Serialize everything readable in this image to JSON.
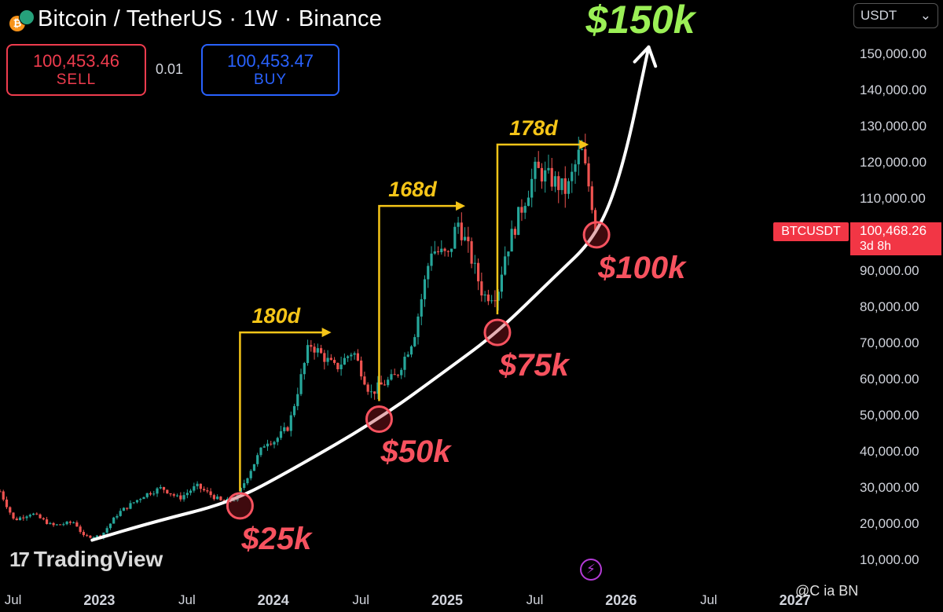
{
  "header": {
    "title": "Bitcoin / TetherUS · 1W · Binance",
    "coin_icon": "btc-usdt-pair-icon",
    "sell_price": "100,453.46",
    "sell_label": "SELL",
    "spread": "0.01",
    "buy_price": "100,453.47",
    "buy_label": "BUY",
    "currency_selector": "USDT"
  },
  "price_tag": {
    "symbol": "BTCUSDT",
    "price": "100,468.26",
    "countdown": "3d 8h"
  },
  "branding": {
    "logo_mark": "17",
    "logo_text": "TradingView",
    "watermark": "@C  ia BN"
  },
  "colors": {
    "up": "#26a69a",
    "down": "#ef5350",
    "curve": "#ffffff",
    "range_arrow": "#f5c518",
    "support_circle": "#f7525f",
    "target_label": "#9bf056",
    "price_tag": "#f23645"
  },
  "chart_data": {
    "type": "candlestick",
    "title": "Bitcoin / TetherUS · 1W · Binance",
    "y_axis": {
      "ticks": [
        10000,
        20000,
        30000,
        40000,
        50000,
        60000,
        70000,
        80000,
        90000,
        110000,
        120000,
        130000,
        140000,
        150000
      ],
      "tick_labels": [
        "10,000.00",
        "20,000.00",
        "30,000.00",
        "40,000.00",
        "50,000.00",
        "60,000.00",
        "70,000.00",
        "80,000.00",
        "90,000.00",
        "110,000.00",
        "120,000.00",
        "130,000.00",
        "140,000.00",
        "150,000.00"
      ],
      "range": [
        3000,
        165000
      ]
    },
    "x_axis": {
      "range": [
        2022.42,
        2027.3
      ],
      "ticks": [
        {
          "label": "Jul",
          "t": 2022.5,
          "bold": false
        },
        {
          "label": "2023",
          "t": 2023.0,
          "bold": true
        },
        {
          "label": "Jul",
          "t": 2023.5,
          "bold": false
        },
        {
          "label": "2024",
          "t": 2024.0,
          "bold": true
        },
        {
          "label": "Jul",
          "t": 2024.5,
          "bold": false
        },
        {
          "label": "2025",
          "t": 2025.0,
          "bold": true
        },
        {
          "label": "Jul",
          "t": 2025.5,
          "bold": false
        },
        {
          "label": "2026",
          "t": 2026.0,
          "bold": true
        },
        {
          "label": "Jul",
          "t": 2026.5,
          "bold": false
        },
        {
          "label": "2027",
          "t": 2027.0,
          "bold": true
        }
      ]
    },
    "price_anchors": [
      [
        2022.42,
        29000
      ],
      [
        2022.5,
        21000
      ],
      [
        2022.6,
        23000
      ],
      [
        2022.72,
        19500
      ],
      [
        2022.85,
        20500
      ],
      [
        2022.9,
        16500
      ],
      [
        2023.0,
        16600
      ],
      [
        2023.1,
        23000
      ],
      [
        2023.25,
        28000
      ],
      [
        2023.35,
        30000
      ],
      [
        2023.45,
        27000
      ],
      [
        2023.55,
        30500
      ],
      [
        2023.7,
        26000
      ],
      [
        2023.78,
        27000
      ],
      [
        2023.85,
        34000
      ],
      [
        2023.95,
        43000
      ],
      [
        2024.0,
        43000
      ],
      [
        2024.08,
        47000
      ],
      [
        2024.2,
        70000
      ],
      [
        2024.35,
        63000
      ],
      [
        2024.45,
        68000
      ],
      [
        2024.55,
        56000
      ],
      [
        2024.6,
        58000
      ],
      [
        2024.7,
        61000
      ],
      [
        2024.8,
        72000
      ],
      [
        2024.9,
        96000
      ],
      [
        2025.0,
        94000
      ],
      [
        2025.05,
        104000
      ],
      [
        2025.12,
        95000
      ],
      [
        2025.2,
        83000
      ],
      [
        2025.28,
        84000
      ],
      [
        2025.32,
        94000
      ],
      [
        2025.4,
        105000
      ],
      [
        2025.5,
        118000
      ],
      [
        2025.6,
        115000
      ],
      [
        2025.68,
        112000
      ],
      [
        2025.76,
        124000
      ],
      [
        2025.82,
        110000
      ],
      [
        2025.85,
        100500
      ]
    ],
    "support_curve": [
      [
        2022.95,
        15500
      ],
      [
        2023.3,
        20500
      ],
      [
        2023.75,
        26000
      ],
      [
        2024.1,
        35000
      ],
      [
        2024.6,
        49000
      ],
      [
        2025.0,
        63000
      ],
      [
        2025.28,
        73000
      ],
      [
        2025.6,
        88000
      ],
      [
        2025.85,
        99500
      ],
      [
        2026.0,
        118000
      ],
      [
        2026.15,
        152000
      ]
    ],
    "support_points": [
      {
        "label": "$25k",
        "t": 2023.8,
        "price": 25000
      },
      {
        "label": "$50k",
        "t": 2024.6,
        "price": 49000
      },
      {
        "label": "$75k",
        "t": 2025.28,
        "price": 73000
      },
      {
        "label": "$100k",
        "t": 2025.85,
        "price": 100000
      }
    ],
    "target_label": "$150k",
    "ranges": [
      {
        "label": "180d",
        "days": 180,
        "start_t": 2023.8,
        "start_price": 29000,
        "end_t": 2024.28,
        "end_price": 73000
      },
      {
        "label": "168d",
        "days": 168,
        "start_t": 2024.6,
        "start_price": 54000,
        "end_t": 2025.05,
        "end_price": 108000
      },
      {
        "label": "178d",
        "days": 178,
        "start_t": 2025.28,
        "start_price": 78000,
        "end_t": 2025.76,
        "end_price": 125000
      }
    ],
    "last_price": 100468.26
  }
}
